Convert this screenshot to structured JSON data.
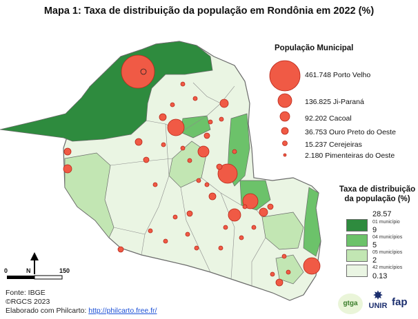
{
  "title": "Mapa 1: Taxa de distribuição da população em Rondônia em 2022 (%)",
  "population_legend": {
    "title": "População Municipal",
    "items": [
      {
        "value": "461.748",
        "name": "Porto Velho"
      },
      {
        "value": "136.825",
        "name": "Ji-Paraná"
      },
      {
        "value": "92.202",
        "name": "Cacoal"
      },
      {
        "value": "36.753",
        "name": "Ouro Preto do Oeste"
      },
      {
        "value": "15.237",
        "name": "Cerejeiras"
      },
      {
        "value": "2.180",
        "name": "Pimenteiras do Oeste"
      }
    ]
  },
  "rate_legend": {
    "title_line1": "Taxa de distribuição",
    "title_line2": "da população (%)",
    "breaks": [
      "28.57",
      "9",
      "5",
      "2",
      "0.13"
    ],
    "classes": [
      {
        "count": "01 município",
        "color": "#2e8b3e"
      },
      {
        "count": "04 municípios",
        "color": "#6cc26a"
      },
      {
        "count": "05 municípios",
        "color": "#c2e6b3"
      },
      {
        "count": "42 municípios",
        "color": "#eaf5e3"
      }
    ]
  },
  "scale": {
    "start": "0",
    "end": "150",
    "north": "N"
  },
  "credits": {
    "source": "Fonte: IBGE",
    "copyright": "©RGCS 2023",
    "made_with": "Elaborado com Philcarto: ",
    "url": "http://philcarto.free.fr/"
  },
  "logos": {
    "gtga": "gtga",
    "unir": "UNIR",
    "fap": "fap"
  },
  "colors": {
    "bubble": "#f05a45",
    "bubble_stroke": "#b8271a"
  }
}
